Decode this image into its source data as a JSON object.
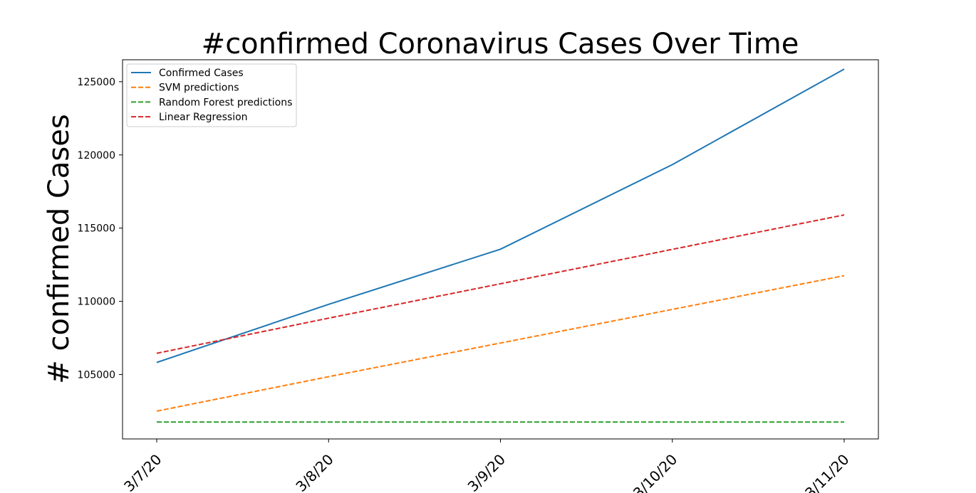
{
  "chart_data": {
    "type": "line",
    "title": "#confirmed Coronavirus Cases Over Time",
    "xlabel": "",
    "ylabel": "# confirmed Cases",
    "x": [
      "3/7/20",
      "3/8/20",
      "3/9/20",
      "3/10/20",
      "3/11/20"
    ],
    "ylim": [
      100600,
      126500
    ],
    "yticks": [
      105000,
      110000,
      115000,
      120000,
      125000
    ],
    "grid": false,
    "legend_position": "top-left",
    "series": [
      {
        "name": "Confirmed Cases",
        "values": [
          105822,
          109795,
          113561,
          119336,
          125865
        ],
        "color": "#1f77b4",
        "dash": "solid"
      },
      {
        "name": "SVM predictions",
        "values": [
          102500,
          104850,
          107150,
          109450,
          111750
        ],
        "color": "#ff7f0e",
        "dash": "dashed"
      },
      {
        "name": "Random Forest predictions",
        "values": [
          101750,
          101750,
          101750,
          101750,
          101750
        ],
        "color": "#2ca02c",
        "dash": "dashed"
      },
      {
        "name": "Linear Regression",
        "values": [
          106450,
          108850,
          111200,
          113550,
          115900
        ],
        "color": "#d62728",
        "dash": "dashed"
      }
    ]
  }
}
